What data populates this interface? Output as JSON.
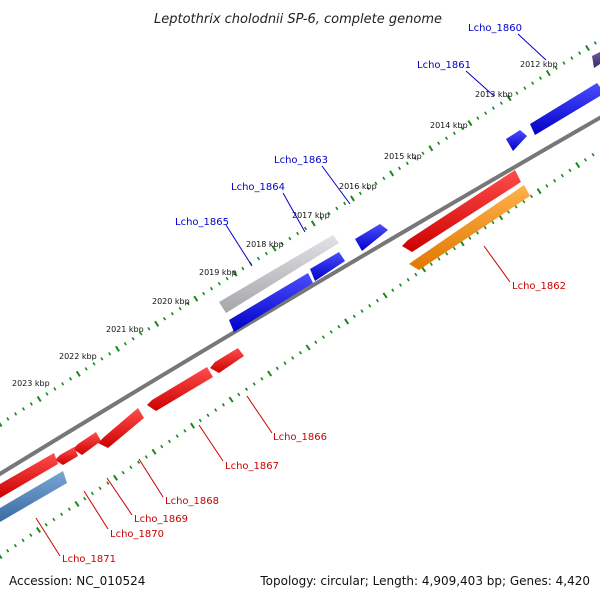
{
  "title": "Leptothrix cholodnii SP-6, complete genome",
  "footer": {
    "accession": "Accession: NC_010524",
    "summary": "Topology: circular; Length: 4,909,403 bp; Genes: 4,420"
  },
  "scale_labels": [
    "2012 kbp",
    "2013 kbp",
    "2014 kbp",
    "2015 kbp",
    "2016 kbp",
    "2017 kbp",
    "2018 kbp",
    "2019 kbp",
    "2020 kbp",
    "2021 kbp",
    "2022 kbp",
    "2023 kbp"
  ],
  "genes_forward": [
    "Lcho_1860",
    "Lcho_1861",
    "Lcho_1863",
    "Lcho_1864",
    "Lcho_1865"
  ],
  "genes_reverse": [
    "Lcho_1862",
    "Lcho_1866",
    "Lcho_1867",
    "Lcho_1868",
    "Lcho_1869",
    "Lcho_1870",
    "Lcho_1871"
  ],
  "colors": {
    "forward_label": "#0000cc",
    "reverse_label": "#cc0000",
    "forward_gene": "#0000ee",
    "reverse_gene": "#ee0000",
    "highlight_gray": "#b8b8bc",
    "orange_gene": "#ff8c00",
    "steel_gene": "#4a7fb5",
    "backbone": "#777777",
    "dots": "#1a8a1a"
  }
}
